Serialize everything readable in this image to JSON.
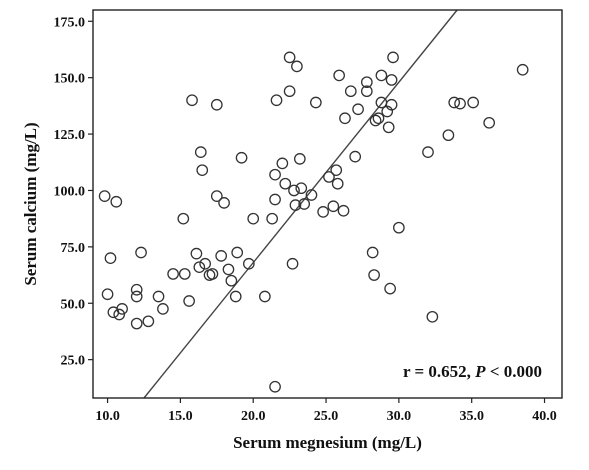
{
  "chart_data": {
    "type": "scatter",
    "title": "",
    "xlabel": "Serum megnesium (mg/L)",
    "ylabel": "Serum calcium (mg/L)",
    "xlim": [
      9.0,
      41.2
    ],
    "ylim": [
      8.0,
      180.0
    ],
    "x_ticks": [
      "10.0",
      "15.0",
      "20.0",
      "25.0",
      "30.0",
      "35.0",
      "40.0"
    ],
    "y_ticks": [
      "25.0",
      "50.0",
      "75.0",
      "100.0",
      "125.0",
      "150.0",
      "175.0"
    ],
    "grid": false,
    "annotation": {
      "prefix": "r = 0.652, ",
      "p_symbol": "P",
      "suffix": " < 0.000"
    },
    "fit_line": {
      "slope": 8.0,
      "intercept": -92.0
    },
    "points": [
      {
        "x": 9.8,
        "y": 97.5
      },
      {
        "x": 10.0,
        "y": 54.0
      },
      {
        "x": 10.2,
        "y": 70.0
      },
      {
        "x": 10.4,
        "y": 46.0
      },
      {
        "x": 10.6,
        "y": 95.0
      },
      {
        "x": 10.8,
        "y": 45.0
      },
      {
        "x": 11.0,
        "y": 47.5
      },
      {
        "x": 12.0,
        "y": 56.0
      },
      {
        "x": 12.0,
        "y": 53.0
      },
      {
        "x": 12.0,
        "y": 41.0
      },
      {
        "x": 12.3,
        "y": 72.5
      },
      {
        "x": 12.8,
        "y": 42.0
      },
      {
        "x": 13.5,
        "y": 53.0
      },
      {
        "x": 13.8,
        "y": 47.5
      },
      {
        "x": 14.5,
        "y": 63.0
      },
      {
        "x": 15.2,
        "y": 87.5
      },
      {
        "x": 15.3,
        "y": 63.0
      },
      {
        "x": 15.6,
        "y": 51.0
      },
      {
        "x": 15.8,
        "y": 140.0
      },
      {
        "x": 16.1,
        "y": 72.0
      },
      {
        "x": 16.3,
        "y": 66.0
      },
      {
        "x": 16.4,
        "y": 117.0
      },
      {
        "x": 16.5,
        "y": 109.0
      },
      {
        "x": 16.7,
        "y": 67.5
      },
      {
        "x": 17.0,
        "y": 62.5
      },
      {
        "x": 17.2,
        "y": 63.0
      },
      {
        "x": 17.5,
        "y": 97.5
      },
      {
        "x": 17.5,
        "y": 138.0
      },
      {
        "x": 17.8,
        "y": 71.0
      },
      {
        "x": 18.0,
        "y": 94.5
      },
      {
        "x": 18.3,
        "y": 65.0
      },
      {
        "x": 18.5,
        "y": 60.0
      },
      {
        "x": 18.8,
        "y": 53.0
      },
      {
        "x": 18.9,
        "y": 72.5
      },
      {
        "x": 19.2,
        "y": 114.5
      },
      {
        "x": 19.7,
        "y": 67.5
      },
      {
        "x": 20.0,
        "y": 87.5
      },
      {
        "x": 20.8,
        "y": 53.0
      },
      {
        "x": 21.3,
        "y": 87.5
      },
      {
        "x": 21.5,
        "y": 107.0
      },
      {
        "x": 21.5,
        "y": 96.0
      },
      {
        "x": 21.5,
        "y": 13.0
      },
      {
        "x": 21.6,
        "y": 140.0
      },
      {
        "x": 22.0,
        "y": 112.0
      },
      {
        "x": 22.2,
        "y": 103.0
      },
      {
        "x": 22.5,
        "y": 144.0
      },
      {
        "x": 22.5,
        "y": 159.0
      },
      {
        "x": 22.7,
        "y": 67.5
      },
      {
        "x": 22.8,
        "y": 100.0
      },
      {
        "x": 22.9,
        "y": 93.5
      },
      {
        "x": 23.0,
        "y": 155.0
      },
      {
        "x": 23.2,
        "y": 114.0
      },
      {
        "x": 23.3,
        "y": 101.0
      },
      {
        "x": 23.5,
        "y": 94.0
      },
      {
        "x": 24.0,
        "y": 98.0
      },
      {
        "x": 24.3,
        "y": 139.0
      },
      {
        "x": 24.8,
        "y": 90.5
      },
      {
        "x": 25.2,
        "y": 106.0
      },
      {
        "x": 25.5,
        "y": 93.0
      },
      {
        "x": 25.7,
        "y": 109.0
      },
      {
        "x": 25.8,
        "y": 103.0
      },
      {
        "x": 25.9,
        "y": 151.0
      },
      {
        "x": 26.2,
        "y": 91.0
      },
      {
        "x": 26.3,
        "y": 132.0
      },
      {
        "x": 26.7,
        "y": 144.0
      },
      {
        "x": 27.0,
        "y": 115.0
      },
      {
        "x": 27.2,
        "y": 136.0
      },
      {
        "x": 27.8,
        "y": 144.0
      },
      {
        "x": 27.8,
        "y": 148.0
      },
      {
        "x": 28.2,
        "y": 72.5
      },
      {
        "x": 28.3,
        "y": 62.5
      },
      {
        "x": 28.4,
        "y": 131.0
      },
      {
        "x": 28.6,
        "y": 132.0
      },
      {
        "x": 28.8,
        "y": 151.0
      },
      {
        "x": 28.8,
        "y": 139.0
      },
      {
        "x": 29.2,
        "y": 135.0
      },
      {
        "x": 29.3,
        "y": 128.0
      },
      {
        "x": 29.4,
        "y": 56.5
      },
      {
        "x": 29.5,
        "y": 138.0
      },
      {
        "x": 29.5,
        "y": 149.0
      },
      {
        "x": 29.6,
        "y": 159.0
      },
      {
        "x": 30.0,
        "y": 83.5
      },
      {
        "x": 32.0,
        "y": 117.0
      },
      {
        "x": 32.3,
        "y": 44.0
      },
      {
        "x": 33.4,
        "y": 124.5
      },
      {
        "x": 33.8,
        "y": 139.0
      },
      {
        "x": 34.2,
        "y": 138.5
      },
      {
        "x": 35.1,
        "y": 139.0
      },
      {
        "x": 36.2,
        "y": 130.0
      },
      {
        "x": 38.5,
        "y": 153.5
      }
    ]
  }
}
